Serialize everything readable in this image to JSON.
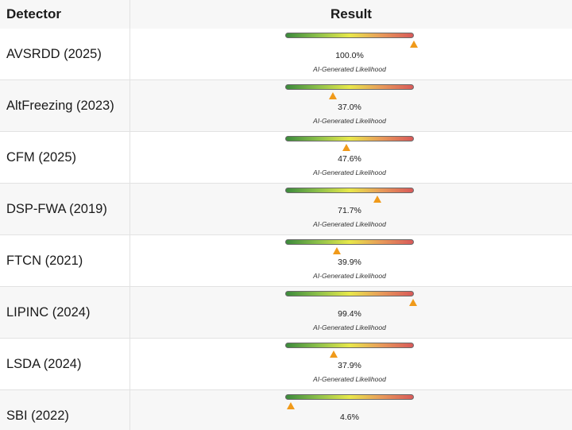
{
  "header": {
    "detector_label": "Detector",
    "result_label": "Result"
  },
  "colors": {
    "marker": "#f09a1a",
    "gradient": [
      "#3c8a3c",
      "#8cc04a",
      "#e8e84a",
      "#e89a5a",
      "#d85a5a"
    ]
  },
  "rows": [
    {
      "detector": "AVSRDD (2025)",
      "value": 100.0,
      "percent": "100.0%",
      "caption": "AI-Generated Likelihood"
    },
    {
      "detector": "AltFreezing (2023)",
      "value": 37.0,
      "percent": "37.0%",
      "caption": "AI-Generated Likelihood"
    },
    {
      "detector": "CFM (2025)",
      "value": 47.6,
      "percent": "47.6%",
      "caption": "AI-Generated Likelihood"
    },
    {
      "detector": "DSP-FWA (2019)",
      "value": 71.7,
      "percent": "71.7%",
      "caption": "AI-Generated Likelihood"
    },
    {
      "detector": "FTCN (2021)",
      "value": 39.9,
      "percent": "39.9%",
      "caption": "AI-Generated Likelihood"
    },
    {
      "detector": "LIPINC (2024)",
      "value": 99.4,
      "percent": "99.4%",
      "caption": "AI-Generated Likelihood"
    },
    {
      "detector": "LSDA (2024)",
      "value": 37.9,
      "percent": "37.9%",
      "caption": "AI-Generated Likelihood"
    },
    {
      "detector": "SBI (2022)",
      "value": 4.6,
      "percent": "4.6%",
      "caption": ""
    }
  ]
}
